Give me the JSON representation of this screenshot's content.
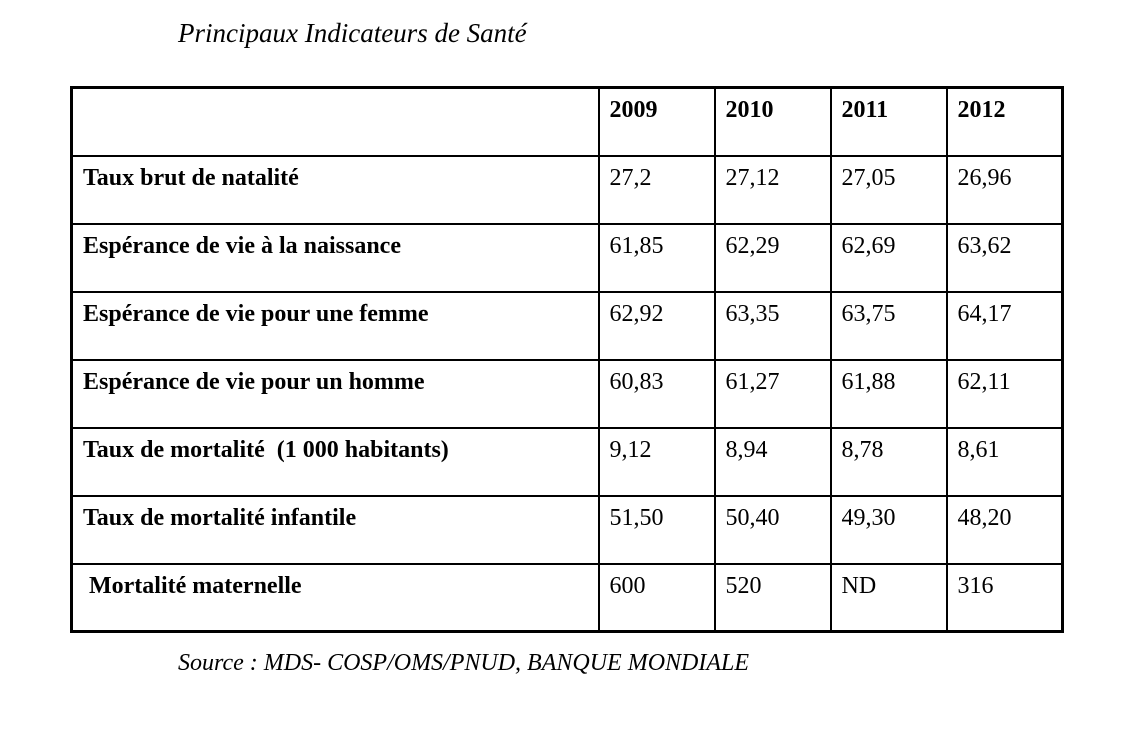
{
  "page": {
    "title": "Principaux Indicateurs de Santé",
    "source_note": "Source : MDS- COSP/OMS/PNUD, BANQUE MONDIALE"
  },
  "colors": {
    "text": "#000000",
    "border": "#000000",
    "background": "#ffffff"
  },
  "table": {
    "header": [
      "",
      "2009",
      "2010",
      "2011",
      "2012"
    ],
    "rows": [
      {
        "label": "Taux brut de natalité",
        "values": [
          "27,2",
          "27,12",
          "27,05",
          "26,96"
        ]
      },
      {
        "label": "Espérance de vie à la naissance",
        "values": [
          "61,85",
          "62,29",
          "62,69",
          "63,62"
        ]
      },
      {
        "label": "Espérance de vie pour une femme",
        "values": [
          "62,92",
          "63,35",
          "63,75",
          "64,17"
        ]
      },
      {
        "label": "Espérance de vie pour un homme",
        "values": [
          "60,83",
          "61,27",
          "61,88",
          "62,11"
        ]
      },
      {
        "label": "Taux de mortalité  (1 000 habitants)",
        "values": [
          "9,12",
          "8,94",
          "8,78",
          "8,61"
        ]
      },
      {
        "label": "Taux de mortalité infantile",
        "values": [
          "51,50",
          "50,40",
          "49,30",
          "48,20"
        ]
      },
      {
        "label": " Mortalité maternelle",
        "values": [
          "600",
          "520",
          "ND",
          "316"
        ]
      }
    ]
  }
}
